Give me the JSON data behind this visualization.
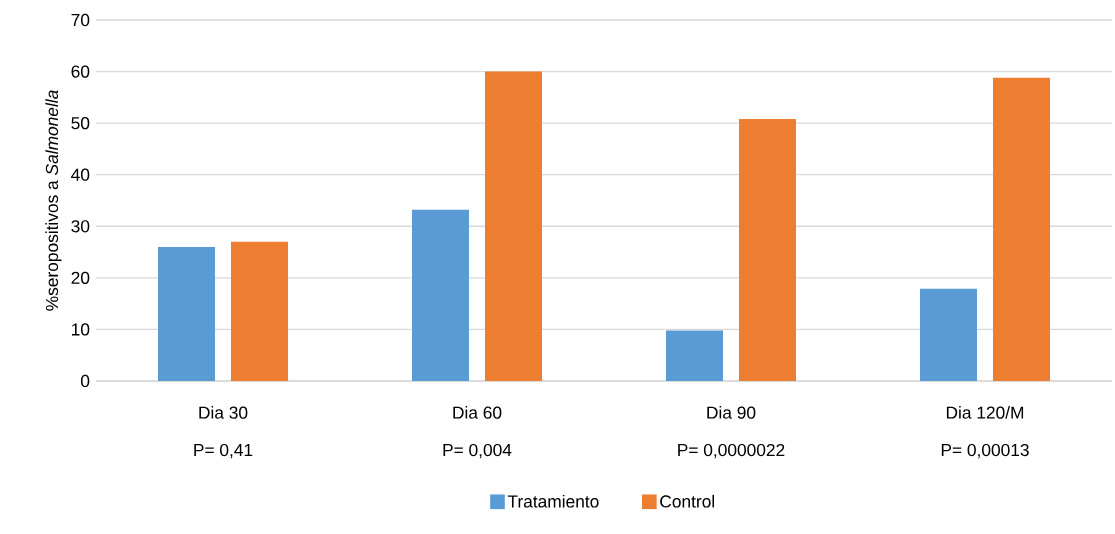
{
  "chart_data": {
    "type": "bar",
    "ylabel": "%seropositivos a *Salmonella*",
    "categories": [
      "Dia 30",
      "Dia 60",
      "Dia 90",
      "Dia 120/M"
    ],
    "series": [
      {
        "name": "Tratamiento",
        "color": "#5b9bd5",
        "values": [
          26,
          33.2,
          9.8,
          17.9
        ]
      },
      {
        "name": "Control",
        "color": "#ed7d31",
        "values": [
          27,
          60,
          50.8,
          58.8
        ]
      }
    ],
    "ylim": [
      0,
      70
    ],
    "yticks": [
      0,
      10,
      20,
      30,
      40,
      50,
      60,
      70
    ],
    "grid": "y",
    "legend": "bottom",
    "annotations": [
      "P= 0,41",
      "P= 0,004",
      "P= 0,0000022",
      "P= 0,00013"
    ]
  }
}
